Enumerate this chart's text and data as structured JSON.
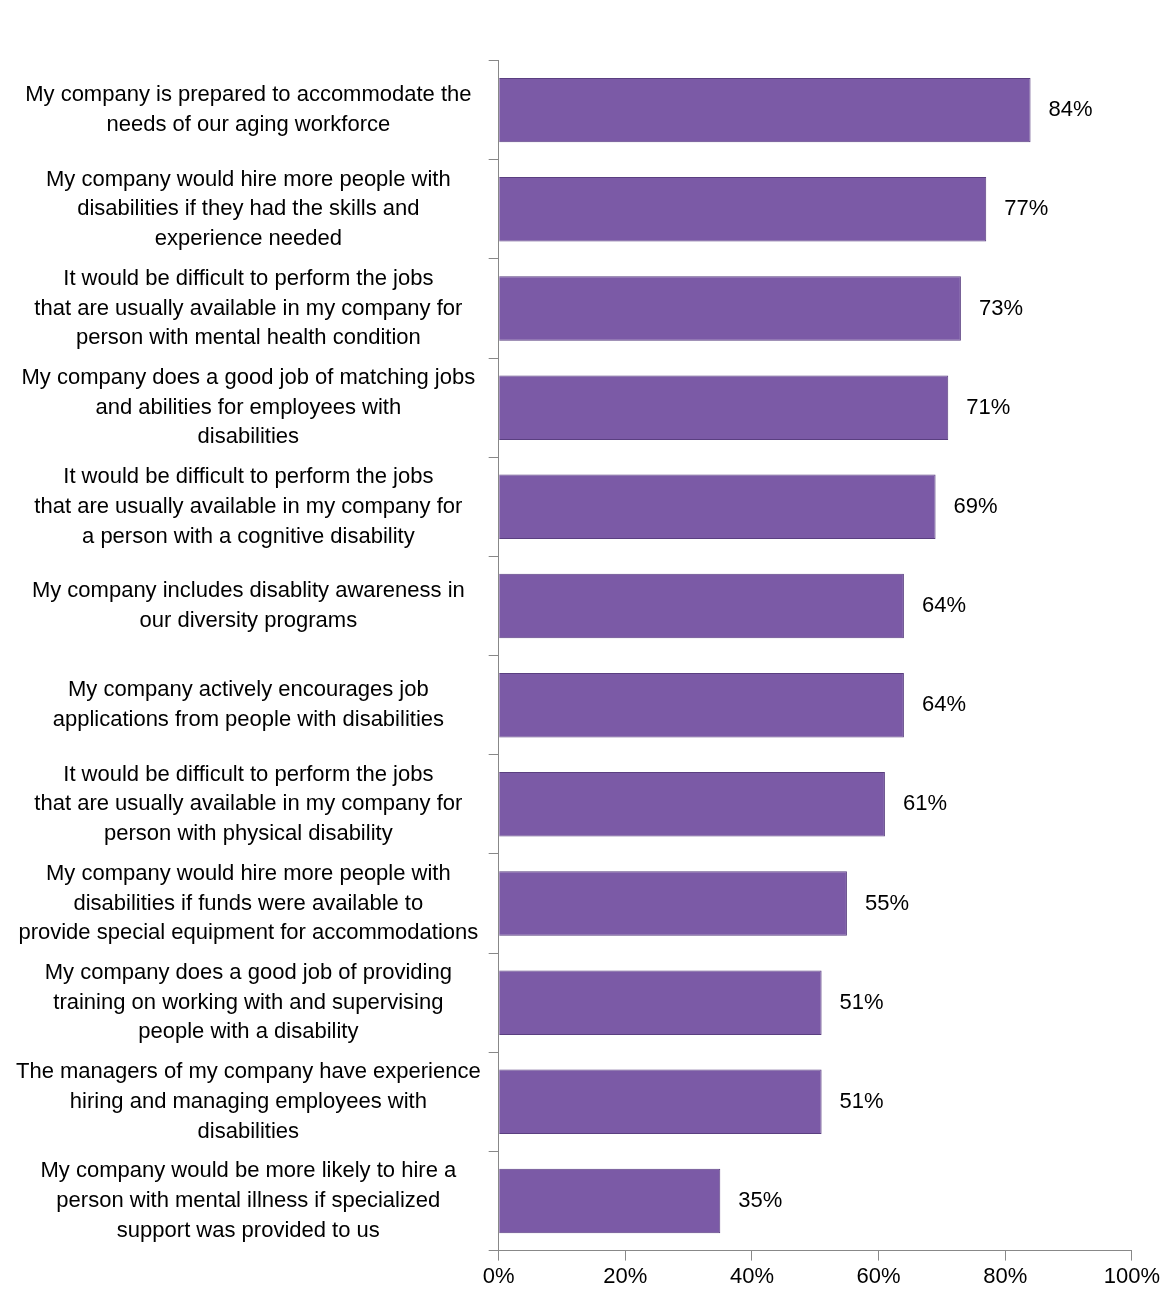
{
  "chart_data": {
    "type": "bar",
    "orientation": "horizontal",
    "categories": [
      "My company is prepared to accommodate the needs of our aging workforce",
      "My company would hire more people with disabilities if they had the skills and experience needed",
      "It would be difficult to perform the jobs that are usually available in my company for person with mental health condition",
      "My company does a good job of matching jobs and abilities for employees with disabilities",
      "It would be difficult to perform the jobs that are usually available in my company for a person with a cognitive disability",
      "My company includes disablity awareness in our diversity programs",
      "My company actively encourages job applications from people with disabilities",
      "It would be difficult to perform the jobs that are usually available in my company for person with physical disability",
      "My company would hire more people with disabilities if funds were available to provide special equipment for accommodations",
      "My company does a good job of providing training on working with and supervising people with a disability",
      "The managers of my company have experience hiring and managing employees with disabilities",
      "My company would be more likely to hire a person with mental illness if specialized support was provided to us"
    ],
    "values": [
      84,
      77,
      73,
      71,
      69,
      64,
      64,
      61,
      55,
      51,
      51,
      35
    ],
    "value_labels": [
      "84%",
      "77%",
      "73%",
      "71%",
      "69%",
      "64%",
      "64%",
      "61%",
      "55%",
      "51%",
      "51%",
      "35%"
    ],
    "color": "#7b5aa6",
    "xlim": [
      0,
      100
    ],
    "xticks": [
      {
        "value": 0,
        "label": "0%"
      },
      {
        "value": 20,
        "label": "20%"
      },
      {
        "value": 40,
        "label": "40%"
      },
      {
        "value": 60,
        "label": "60%"
      },
      {
        "value": 80,
        "label": "80%"
      },
      {
        "value": 100,
        "label": "100%"
      }
    ],
    "grid": false,
    "legend": false
  }
}
